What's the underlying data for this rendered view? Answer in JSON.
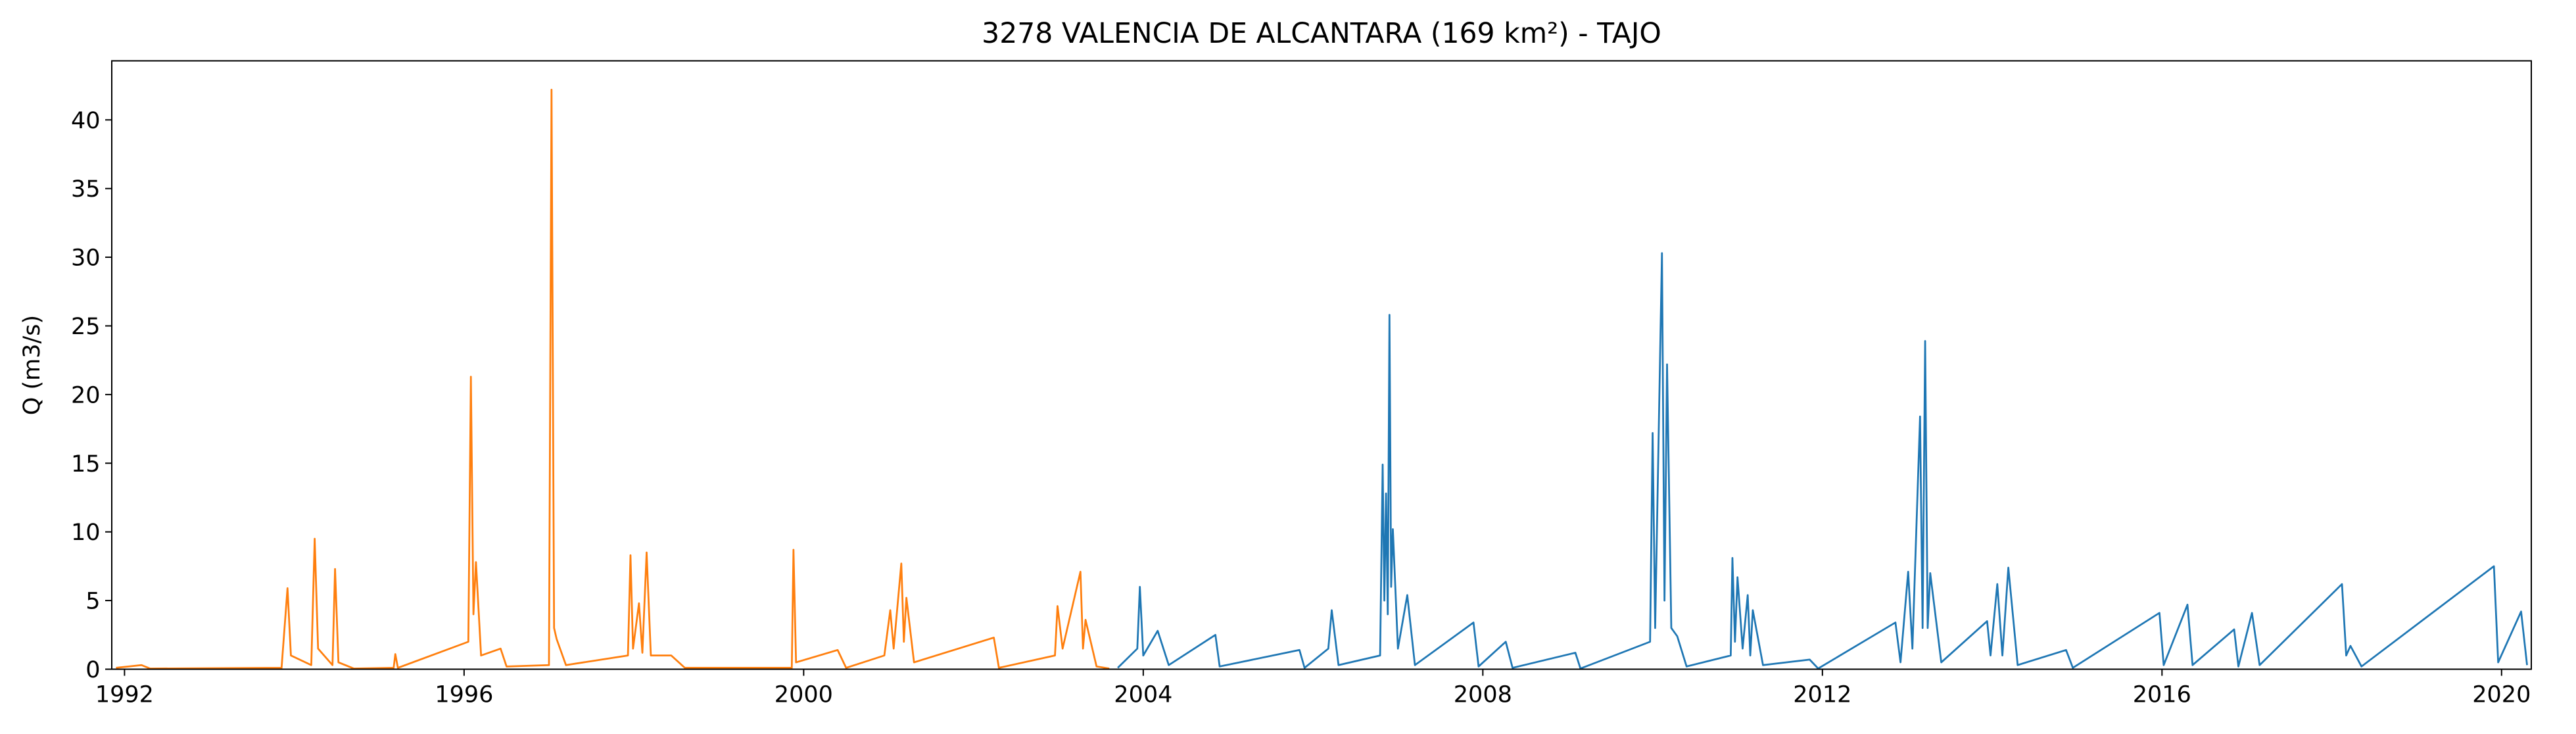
{
  "chart_data": {
    "type": "line",
    "title": "3278 VALENCIA DE ALCANTARA (169 km²) - TAJO",
    "y_label": "Q (m3/s)",
    "xlim": [
      1991.85,
      2020.35
    ],
    "xticks": [
      1992,
      1996,
      2000,
      2004,
      2008,
      2012,
      2016,
      2020
    ],
    "ylim": [
      0,
      44.3
    ],
    "yticks": [
      0,
      5,
      10,
      15,
      20,
      25,
      30,
      35,
      40
    ],
    "grid": false,
    "series": [
      {
        "color": "#ff7f0e",
        "x": [
          1991.9,
          1992.2,
          1992.3,
          1993.85,
          1993.92,
          1993.96,
          1994.2,
          1994.24,
          1994.28,
          1994.45,
          1994.48,
          1994.52,
          1994.7,
          1995.17,
          1995.19,
          1995.22,
          1996.05,
          1996.08,
          1996.11,
          1996.14,
          1996.2,
          1996.43,
          1996.5,
          1997.0,
          1997.03,
          1997.06,
          1997.09,
          1997.2,
          1997.93,
          1997.96,
          1997.99,
          1998.06,
          1998.1,
          1998.15,
          1998.2,
          1998.44,
          1998.6,
          1999.86,
          1999.88,
          1999.91,
          2000.4,
          2000.5,
          2000.95,
          2001.02,
          2001.06,
          2001.15,
          2001.18,
          2001.21,
          2001.3,
          2002.24,
          2002.3,
          2002.96,
          2002.99,
          2003.05,
          2003.26,
          2003.29,
          2003.32,
          2003.45,
          2003.6
        ],
        "values": [
          0.1,
          0.3,
          0.05,
          0.1,
          5.9,
          1.0,
          0.3,
          9.5,
          1.5,
          0.3,
          7.3,
          0.5,
          0.05,
          0.1,
          1.1,
          0.1,
          2.0,
          21.3,
          4.0,
          7.8,
          1.0,
          1.5,
          0.2,
          0.3,
          42.2,
          3.0,
          2.2,
          0.3,
          1.0,
          8.3,
          1.5,
          4.8,
          1.2,
          8.5,
          1.0,
          1.0,
          0.1,
          0.1,
          8.7,
          0.5,
          1.4,
          0.1,
          1.0,
          4.3,
          1.5,
          7.7,
          2.0,
          5.2,
          0.5,
          2.3,
          0.1,
          1.0,
          4.6,
          1.5,
          7.1,
          1.5,
          3.6,
          0.2,
          0.05
        ]
      },
      {
        "color": "#1f77b4",
        "x": [
          2003.7,
          2003.93,
          2003.96,
          2004.0,
          2004.17,
          2004.3,
          2004.85,
          2004.9,
          2005.84,
          2005.9,
          2006.18,
          2006.22,
          2006.3,
          2006.79,
          2006.82,
          2006.84,
          2006.86,
          2006.88,
          2006.9,
          2006.92,
          2006.94,
          2007.0,
          2007.11,
          2007.2,
          2007.89,
          2007.95,
          2008.27,
          2008.35,
          2009.09,
          2009.15,
          2009.97,
          2010.0,
          2010.03,
          2010.11,
          2010.14,
          2010.17,
          2010.22,
          2010.29,
          2010.4,
          2010.92,
          2010.94,
          2010.97,
          2011.0,
          2011.06,
          2011.12,
          2011.15,
          2011.18,
          2011.3,
          2011.85,
          2011.95,
          2012.86,
          2012.92,
          2013.01,
          2013.06,
          2013.15,
          2013.18,
          2013.21,
          2013.24,
          2013.27,
          2013.4,
          2013.94,
          2013.98,
          2014.06,
          2014.12,
          2014.19,
          2014.3,
          2014.87,
          2014.95,
          2015.97,
          2016.02,
          2016.3,
          2016.36,
          2016.85,
          2016.9,
          2017.06,
          2017.15,
          2018.12,
          2018.17,
          2018.22,
          2018.35,
          2019.91,
          2019.96,
          2020.23,
          2020.3
        ],
        "values": [
          0.1,
          1.5,
          6.0,
          1.0,
          2.8,
          0.3,
          2.5,
          0.2,
          1.4,
          0.1,
          1.5,
          4.3,
          0.3,
          1.0,
          14.9,
          5.0,
          12.8,
          4.0,
          25.8,
          6.0,
          10.2,
          1.5,
          5.4,
          0.3,
          3.4,
          0.2,
          2.0,
          0.1,
          1.2,
          0.05,
          2.0,
          17.2,
          3.0,
          30.3,
          5.0,
          22.2,
          3.0,
          2.4,
          0.2,
          1.0,
          8.1,
          2.0,
          6.7,
          1.5,
          5.4,
          1.0,
          4.3,
          0.3,
          0.7,
          0.05,
          3.4,
          0.5,
          7.1,
          1.5,
          18.4,
          3.0,
          23.9,
          3.0,
          7.0,
          0.5,
          3.5,
          1.0,
          6.2,
          1.0,
          7.4,
          0.3,
          1.4,
          0.1,
          4.1,
          0.3,
          4.7,
          0.3,
          2.9,
          0.2,
          4.1,
          0.3,
          6.2,
          1.0,
          1.7,
          0.2,
          7.5,
          0.5,
          4.2,
          0.3
        ]
      }
    ]
  }
}
